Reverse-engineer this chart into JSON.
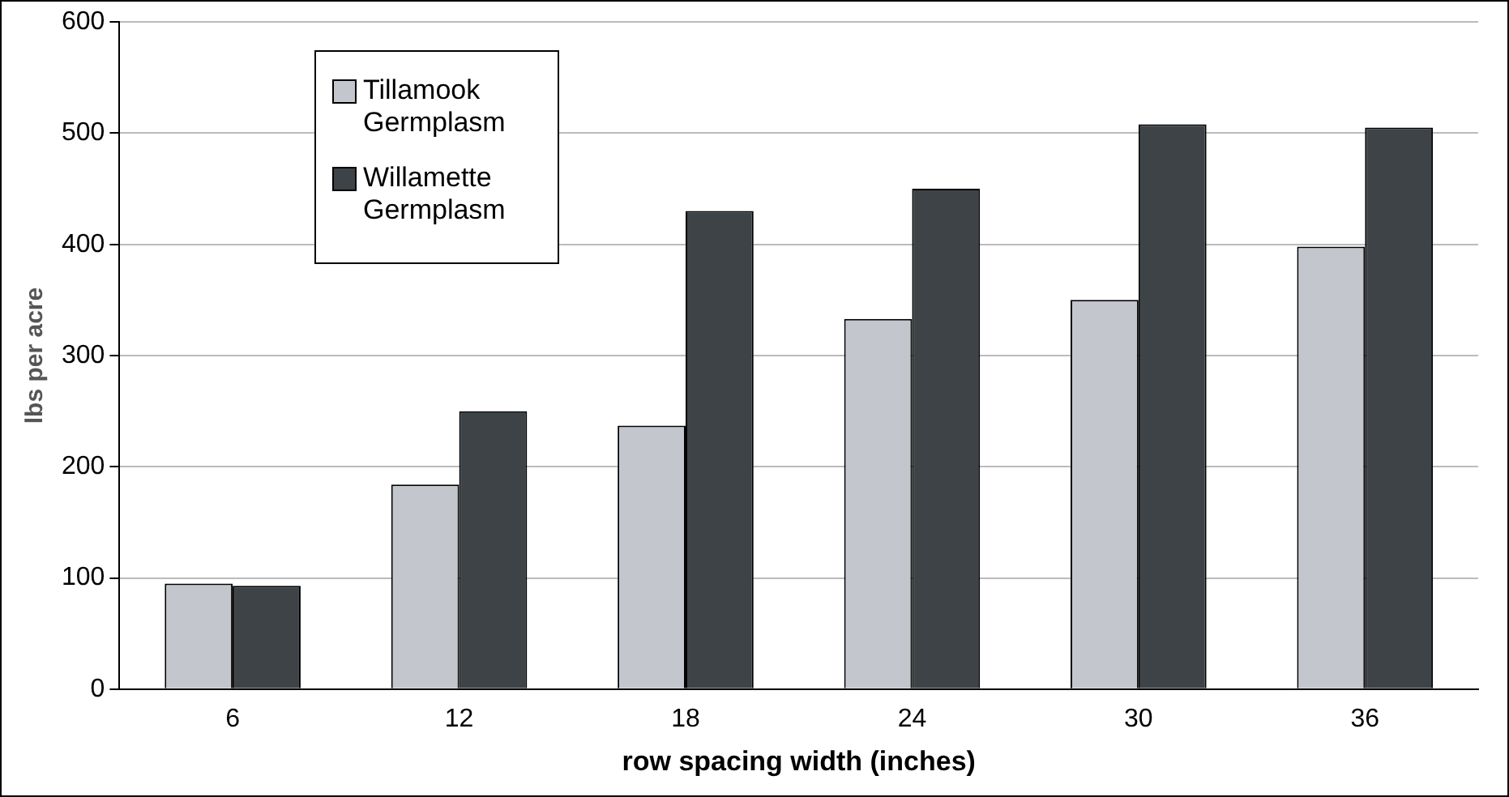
{
  "chart_data": {
    "type": "bar",
    "xlabel": "row spacing width (inches)",
    "ylabel": "lbs per acre",
    "categories": [
      "6",
      "12",
      "18",
      "24",
      "30",
      "36"
    ],
    "series": [
      {
        "name": "Tillamook Germplasm",
        "color": "#c3c6cc",
        "values": [
          95,
          184,
          237,
          333,
          350,
          398
        ]
      },
      {
        "name": "Willamette Germplasm",
        "color": "#3d4347",
        "values": [
          93,
          250,
          430,
          450,
          508,
          505
        ]
      }
    ],
    "ylim": [
      0,
      600
    ],
    "yticks": [
      0,
      100,
      200,
      300,
      400,
      500,
      600
    ],
    "grid": "y",
    "legend": "top left"
  }
}
